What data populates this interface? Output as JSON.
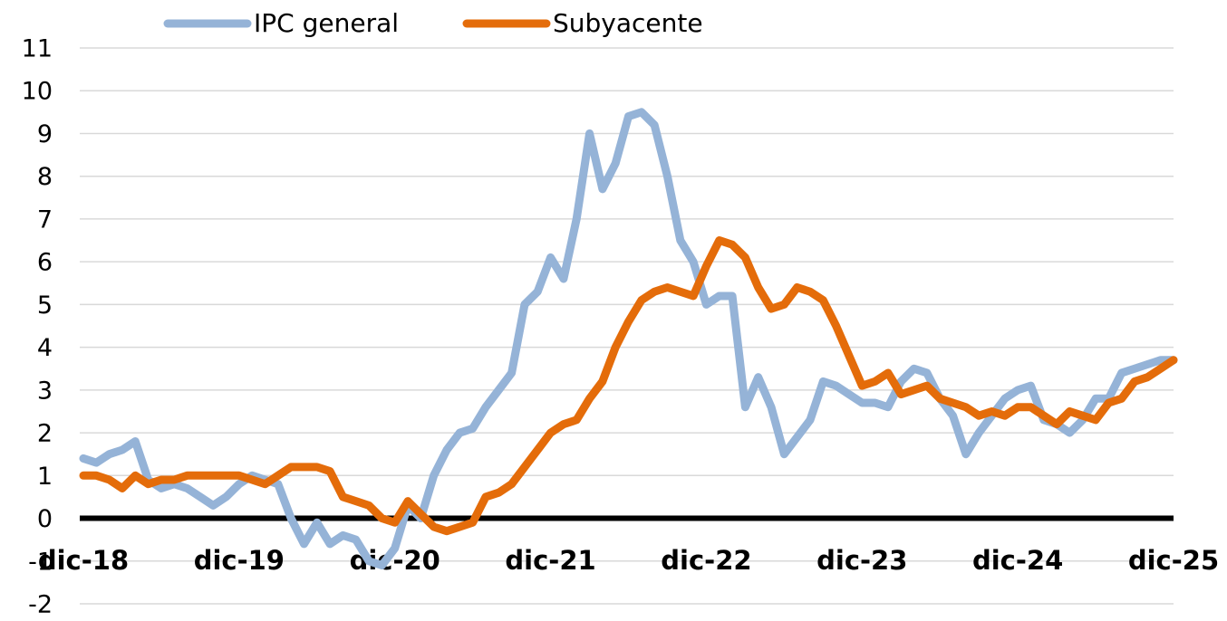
{
  "chart_data": {
    "type": "line",
    "categories": [
      "dic-18",
      null,
      null,
      null,
      null,
      null,
      null,
      null,
      null,
      null,
      null,
      null,
      "dic-19",
      null,
      null,
      null,
      null,
      null,
      null,
      null,
      null,
      null,
      null,
      null,
      "dic-20",
      null,
      null,
      null,
      null,
      null,
      null,
      null,
      null,
      null,
      null,
      null,
      "dic-21",
      null,
      null,
      null,
      null,
      null,
      null,
      null,
      null,
      null,
      null,
      null,
      "dic-22",
      null,
      null,
      null,
      null,
      null,
      null,
      null,
      null,
      null,
      null,
      null,
      "dic-23",
      null,
      null,
      null,
      null,
      null,
      null,
      null,
      null,
      null,
      null,
      null,
      "dic-24",
      null,
      null,
      null,
      null,
      null,
      null,
      null,
      null,
      null,
      null,
      null,
      "dic-25"
    ],
    "series": [
      {
        "name": "IPC general",
        "color": "#95b3d7",
        "values": [
          1.4,
          1.3,
          1.5,
          1.6,
          1.8,
          0.9,
          0.7,
          0.8,
          0.7,
          0.5,
          0.3,
          0.5,
          0.8,
          1.0,
          0.9,
          0.8,
          0.0,
          -0.6,
          -0.1,
          -0.6,
          -0.4,
          -0.5,
          -1.0,
          -1.1,
          -0.7,
          0.3,
          0.0,
          1.0,
          1.6,
          2.0,
          2.1,
          2.6,
          3.0,
          3.4,
          5.0,
          5.3,
          6.1,
          5.6,
          7.0,
          9.0,
          7.7,
          8.3,
          9.4,
          9.5,
          9.2,
          8.0,
          6.5,
          6.0,
          5.0,
          5.2,
          5.2,
          2.6,
          3.3,
          2.6,
          1.5,
          1.9,
          2.3,
          3.2,
          3.1,
          2.9,
          2.7,
          2.7,
          2.6,
          3.2,
          3.5,
          3.4,
          2.8,
          2.4,
          1.5,
          2.0,
          2.4,
          2.8,
          3.0,
          3.1,
          2.3,
          2.2,
          2.0,
          2.3,
          2.8,
          2.8,
          3.4,
          3.5,
          3.6,
          3.7,
          3.7
        ]
      },
      {
        "name": "Subyacente",
        "color": "#e46c0a",
        "values": [
          1.0,
          1.0,
          0.9,
          0.7,
          1.0,
          0.8,
          0.9,
          0.9,
          1.0,
          1.0,
          1.0,
          1.0,
          1.0,
          0.9,
          0.8,
          1.0,
          1.2,
          1.2,
          1.2,
          1.1,
          0.5,
          0.4,
          0.3,
          0.0,
          -0.1,
          0.4,
          0.1,
          -0.2,
          -0.3,
          -0.2,
          -0.1,
          0.5,
          0.6,
          0.8,
          1.2,
          1.6,
          2.0,
          2.2,
          2.3,
          2.8,
          3.2,
          4.0,
          4.6,
          5.1,
          5.3,
          5.4,
          5.3,
          5.2,
          5.9,
          6.5,
          6.4,
          6.1,
          5.4,
          4.9,
          5.0,
          5.4,
          5.3,
          5.1,
          4.5,
          3.8,
          3.1,
          3.2,
          3.4,
          2.9,
          3.0,
          3.1,
          2.8,
          2.7,
          2.6,
          2.4,
          2.5,
          2.4,
          2.6,
          2.6,
          2.4,
          2.2,
          2.5,
          2.4,
          2.3,
          2.7,
          2.8,
          3.2,
          3.3,
          3.5,
          3.7
        ]
      }
    ],
    "ylim": [
      -2,
      11
    ],
    "yticks": [
      -2,
      -1,
      0,
      1,
      2,
      3,
      4,
      5,
      6,
      7,
      8,
      9,
      10,
      11
    ],
    "grid": true
  }
}
